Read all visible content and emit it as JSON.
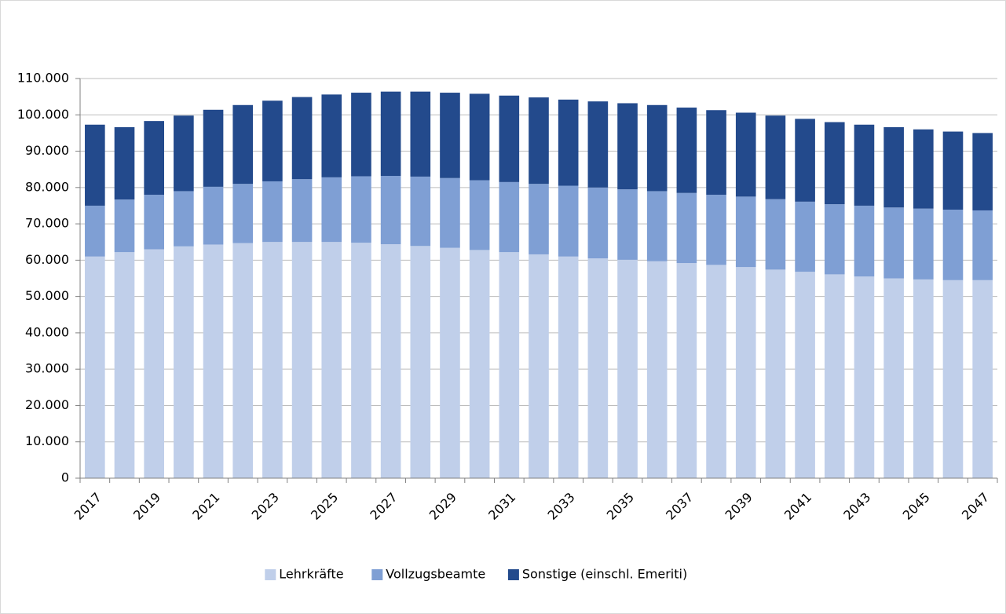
{
  "chart_data": {
    "type": "stacked_bar",
    "categories": [
      "2017",
      null,
      "2019",
      null,
      "2021",
      null,
      "2023",
      null,
      "2025",
      null,
      "2027",
      null,
      "2029",
      null,
      "2031",
      null,
      "2033",
      null,
      "2035",
      null,
      "2037",
      null,
      "2039",
      null,
      "2041",
      null,
      "2043",
      null,
      "2045",
      null,
      "2047"
    ],
    "series": [
      {
        "name": "Lehrkräfte",
        "color": "#c0cfea",
        "values": [
          61000,
          62200,
          63000,
          63800,
          64300,
          64700,
          65000,
          65000,
          65000,
          64800,
          64400,
          63900,
          63400,
          62800,
          62200,
          61600,
          61000,
          60500,
          60100,
          59700,
          59200,
          58700,
          58100,
          57400,
          56800,
          56100,
          55500,
          55000,
          54700,
          54500,
          54500
        ]
      },
      {
        "name": "Vollzugsbeamte",
        "color": "#7f9fd4",
        "values": [
          14000,
          14500,
          15000,
          15200,
          15900,
          16300,
          16700,
          17300,
          17800,
          18300,
          18800,
          19100,
          19200,
          19200,
          19300,
          19400,
          19500,
          19500,
          19400,
          19300,
          19300,
          19300,
          19400,
          19400,
          19300,
          19300,
          19500,
          19500,
          19500,
          19400,
          19200
        ]
      },
      {
        "name": "Sonstige (einschl. Emeriti)",
        "color": "#234a8c",
        "values": [
          22300,
          19900,
          20300,
          20800,
          21200,
          21700,
          22200,
          22600,
          22800,
          23000,
          23200,
          23400,
          23500,
          23800,
          23800,
          23800,
          23700,
          23700,
          23700,
          23700,
          23500,
          23300,
          23100,
          23000,
          22800,
          22600,
          22300,
          22100,
          21800,
          21500,
          21300
        ]
      }
    ],
    "ylim": [
      0,
      110000
    ],
    "yticks": [
      0,
      {
        "value": 10000,
        "label": "10.000"
      },
      {
        "value": 20000,
        "label": "20.000"
      },
      {
        "value": 30000,
        "label": "30.000"
      },
      {
        "value": 40000,
        "label": "40.000"
      },
      {
        "value": 50000,
        "label": "50.000"
      },
      {
        "value": 60000,
        "label": "60.000"
      },
      {
        "value": 70000,
        "label": "70.000"
      },
      {
        "value": 80000,
        "label": "80.000"
      },
      {
        "value": 90000,
        "label": "90.000"
      },
      {
        "value": 100000,
        "label": "100.000"
      },
      {
        "value": 110000,
        "label": "110.000"
      }
    ],
    "grid": true,
    "legend": "bottom"
  }
}
